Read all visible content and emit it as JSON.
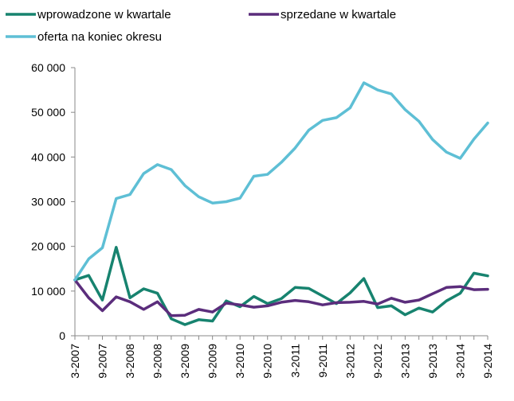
{
  "chart_data": {
    "type": "line",
    "title": "",
    "xlabel": "",
    "ylabel": "",
    "ylim": [
      0,
      60000
    ],
    "yticks": [
      0,
      10000,
      20000,
      30000,
      40000,
      50000,
      60000
    ],
    "ytick_labels": [
      "0",
      "10 000",
      "20 000",
      "30 000",
      "40 000",
      "50 000",
      "60 000"
    ],
    "grid": false,
    "legend_position": "top",
    "categories": [
      "3-2007",
      "6-2007",
      "9-2007",
      "12-2007",
      "3-2008",
      "6-2008",
      "9-2008",
      "12-2008",
      "3-2009",
      "6-2009",
      "9-2009",
      "12-2009",
      "3-2010",
      "6-2010",
      "9-2010",
      "12-2010",
      "3-2011",
      "6-2011",
      "9-2011",
      "12-2011",
      "3-2012",
      "6-2012",
      "9-2012",
      "12-2012",
      "3-2013",
      "6-2013",
      "9-2013",
      "12-2013",
      "3-2014",
      "6-2014",
      "9-2014"
    ],
    "xtick_labels": [
      "3-2007",
      "9-2007",
      "3-2008",
      "9-2008",
      "3-2009",
      "9-2009",
      "3-2010",
      "9-2010",
      "3-2011",
      "9-2011",
      "3-2012",
      "9-2012",
      "3-2013",
      "9-2013",
      "3-2014",
      "9-2014"
    ],
    "series": [
      {
        "name": "wprowadzone w  kwartale",
        "color": "#17836f",
        "values": [
          12500,
          13500,
          8000,
          19800,
          8500,
          10500,
          9500,
          3800,
          2500,
          3600,
          3300,
          7800,
          6500,
          8800,
          7200,
          8300,
          10800,
          10600,
          8900,
          7200,
          9600,
          12800,
          6300,
          6700,
          4700,
          6200,
          5300,
          7800,
          9500,
          14000,
          13400
        ]
      },
      {
        "name": "sprzedane w  kwartale",
        "color": "#5b2d7c",
        "values": [
          12500,
          8500,
          5600,
          8700,
          7600,
          5900,
          7600,
          4500,
          4600,
          5900,
          5300,
          7300,
          6900,
          6400,
          6700,
          7500,
          7900,
          7600,
          6900,
          7400,
          7500,
          7700,
          7100,
          8400,
          7500,
          8000,
          9400,
          10800,
          11000,
          10300,
          10400
        ]
      },
      {
        "name": "oferta na koniec okresu",
        "color": "#5ebfd5",
        "values": [
          12500,
          17200,
          19700,
          30700,
          31600,
          36300,
          38300,
          37200,
          33600,
          31100,
          29700,
          30000,
          30800,
          35700,
          36100,
          38800,
          42000,
          46000,
          48200,
          48800,
          51000,
          56600,
          55000,
          54100,
          50600,
          48000,
          43900,
          41100,
          39700,
          44000,
          47600
        ]
      }
    ]
  }
}
